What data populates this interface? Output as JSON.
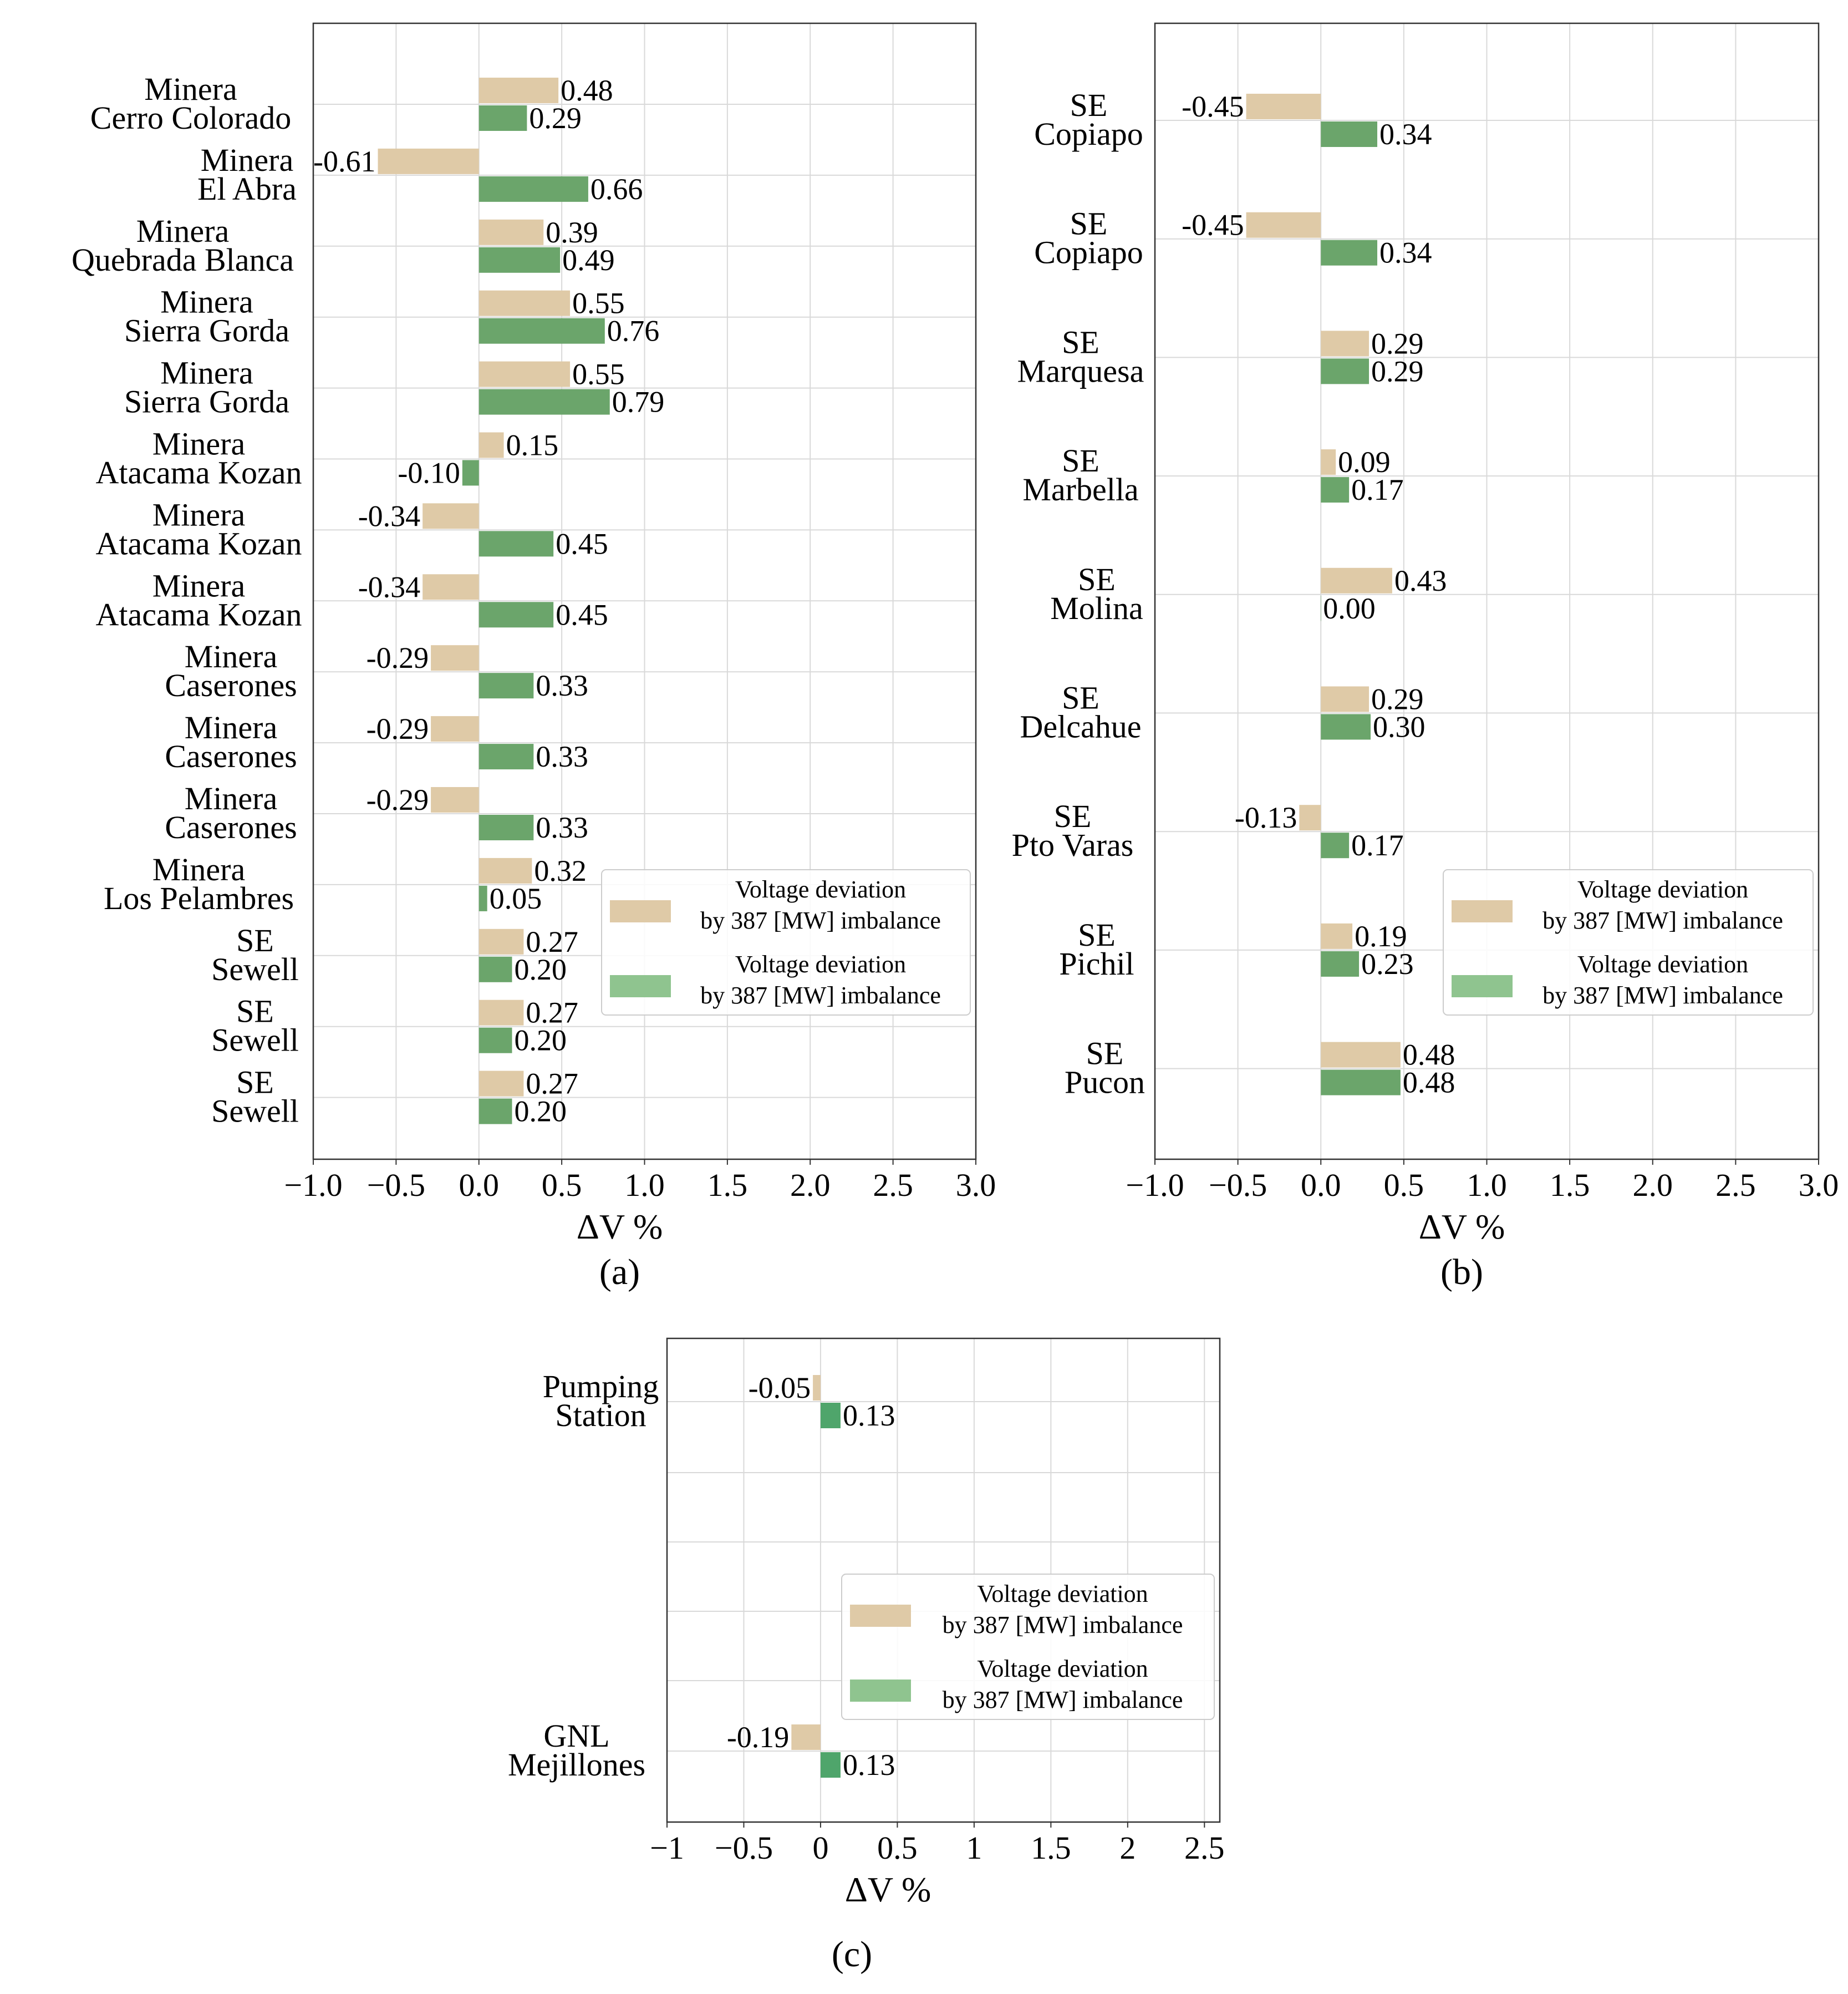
{
  "colors": {
    "series_1": "#dfcaa7",
    "series_2": "#6ba56b",
    "series_2_panel_c": "#4fa56b",
    "legend_series_2": "#8fc48f"
  },
  "chart_data": [
    {
      "id": "a",
      "type": "bar",
      "orientation": "horizontal",
      "caption": "(a)",
      "xlabel": "ΔV %",
      "xlim": [
        -1.0,
        3.0
      ],
      "xticks": [
        "−1.0",
        "−0.5",
        "0.0",
        "0.5",
        "1.0",
        "1.5",
        "2.0",
        "2.5",
        "3.0"
      ],
      "grid": true,
      "legend_position": "center-right",
      "categories": [
        [
          "Minera",
          "Cerro Colorado"
        ],
        [
          "Minera",
          "El Abra"
        ],
        [
          "Minera",
          "Quebrada Blanca"
        ],
        [
          "Minera",
          "Sierra Gorda"
        ],
        [
          "Minera",
          "Sierra Gorda"
        ],
        [
          "Minera",
          "Atacama Kozan"
        ],
        [
          "Minera",
          "Atacama Kozan"
        ],
        [
          "Minera",
          "Atacama Kozan"
        ],
        [
          "Minera",
          "Caserones"
        ],
        [
          "Minera",
          "Caserones"
        ],
        [
          "Minera",
          "Caserones"
        ],
        [
          "Minera",
          "Los Pelambres"
        ],
        [
          "SE",
          "Sewell"
        ],
        [
          "SE",
          "Sewell"
        ],
        [
          "SE",
          "Sewell"
        ]
      ],
      "series": [
        {
          "name": "Voltage deviation by 387 [MW] imbalance",
          "legend_lines": [
            "Voltage deviation",
            "by 387 [MW] imbalance"
          ],
          "values": [
            0.48,
            -0.61,
            0.39,
            0.55,
            0.55,
            0.15,
            -0.34,
            -0.34,
            -0.29,
            -0.29,
            -0.29,
            0.32,
            0.27,
            0.27,
            0.27
          ],
          "labels": [
            "0.48",
            "-0.61",
            "0.39",
            "0.55",
            "0.55",
            "0.15",
            "-0.34",
            "-0.34",
            "-0.29",
            "-0.29",
            "-0.29",
            "0.32",
            "0.27",
            "0.27",
            "0.27"
          ]
        },
        {
          "name": "Voltage deviation by 387 [MW] imbalance",
          "legend_lines": [
            "Voltage deviation",
            "by 387 [MW] imbalance"
          ],
          "values": [
            0.29,
            0.66,
            0.49,
            0.76,
            0.79,
            -0.1,
            0.45,
            0.45,
            0.33,
            0.33,
            0.33,
            0.05,
            0.2,
            0.2,
            0.2
          ],
          "labels": [
            "0.29",
            "0.66",
            "0.49",
            "0.76",
            "0.79",
            "-0.10",
            "0.45",
            "0.45",
            "0.33",
            "0.33",
            "0.33",
            "0.05",
            "0.20",
            "0.20",
            "0.20"
          ]
        }
      ]
    },
    {
      "id": "b",
      "type": "bar",
      "orientation": "horizontal",
      "caption": "(b)",
      "xlabel": "ΔV %",
      "xlim": [
        -1.0,
        3.0
      ],
      "xticks": [
        "−1.0",
        "−0.5",
        "0.0",
        "0.5",
        "1.0",
        "1.5",
        "2.0",
        "2.5",
        "3.0"
      ],
      "grid": true,
      "legend_position": "center-right",
      "categories": [
        [
          "SE",
          "Copiapo"
        ],
        [
          "SE",
          "Copiapo"
        ],
        [
          "SE",
          "Marquesa"
        ],
        [
          "SE",
          "Marbella"
        ],
        [
          "SE",
          "Molina"
        ],
        [
          "SE",
          "Delcahue"
        ],
        [
          "SE",
          "Pto Varas"
        ],
        [
          "SE",
          "Pichil"
        ],
        [
          "SE",
          "Pucon"
        ]
      ],
      "series": [
        {
          "name": "Voltage deviation by 387 [MW] imbalance",
          "legend_lines": [
            "Voltage deviation",
            "by 387 [MW] imbalance"
          ],
          "values": [
            -0.45,
            -0.45,
            0.29,
            0.09,
            0.43,
            0.29,
            -0.13,
            0.19,
            0.48
          ],
          "labels": [
            "-0.45",
            "-0.45",
            "0.29",
            "0.09",
            "0.43",
            "0.29",
            "-0.13",
            "0.19",
            "0.48"
          ]
        },
        {
          "name": "Voltage deviation by 387 [MW] imbalance",
          "legend_lines": [
            "Voltage deviation",
            "by 387 [MW] imbalance"
          ],
          "values": [
            0.34,
            0.34,
            0.29,
            0.17,
            0.0,
            0.3,
            0.17,
            0.23,
            0.48
          ],
          "labels": [
            "0.34",
            "0.34",
            "0.29",
            "0.17",
            "0.00",
            "0.30",
            "0.17",
            "0.23",
            "0.48"
          ]
        }
      ]
    },
    {
      "id": "c",
      "type": "bar",
      "orientation": "horizontal",
      "caption": "(c)",
      "xlabel": "ΔV %",
      "xlim": [
        -1.0,
        2.6
      ],
      "xticks": [
        "−1",
        "−0.5",
        "0",
        "0.5",
        "1",
        "1.5",
        "2",
        "2.5"
      ],
      "grid": true,
      "legend_position": "center-right",
      "categories": [
        [
          "Pumping",
          "Station"
        ],
        [
          "GNL",
          "Mejillones"
        ]
      ],
      "series": [
        {
          "name": "Voltage deviation by 387 [MW] imbalance",
          "legend_lines": [
            "Voltage deviation",
            "by 387 [MW] imbalance"
          ],
          "values": [
            -0.05,
            -0.19
          ],
          "labels": [
            "-0.05",
            "-0.19"
          ]
        },
        {
          "name": "Voltage deviation by 387 [MW] imbalance",
          "legend_lines": [
            "Voltage deviation",
            "by 387 [MW] imbalance"
          ],
          "values": [
            0.13,
            0.13
          ],
          "labels": [
            "0.13",
            "0.13"
          ]
        }
      ]
    }
  ]
}
